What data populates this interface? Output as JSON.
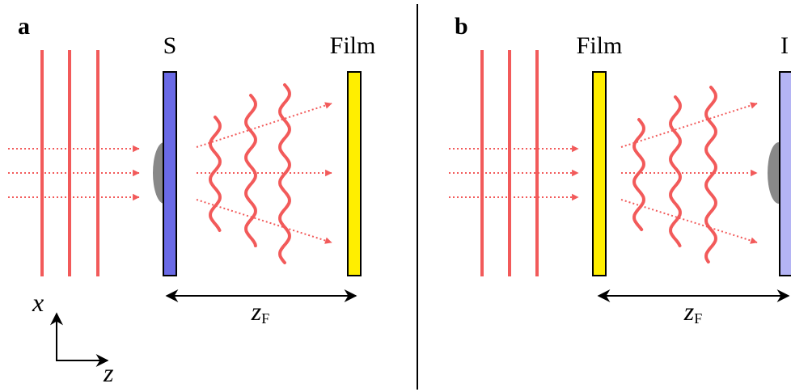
{
  "panels": [
    {
      "label": "a",
      "source_label": "S",
      "film_label": "Film",
      "distance_label": {
        "symbol": "z",
        "subscript": "F"
      },
      "axes": {
        "x": "x",
        "z": "z"
      }
    },
    {
      "label": "b",
      "film_label": "Film",
      "detector_label": "I",
      "distance_label": {
        "symbol": "z",
        "subscript": "F"
      }
    }
  ]
}
